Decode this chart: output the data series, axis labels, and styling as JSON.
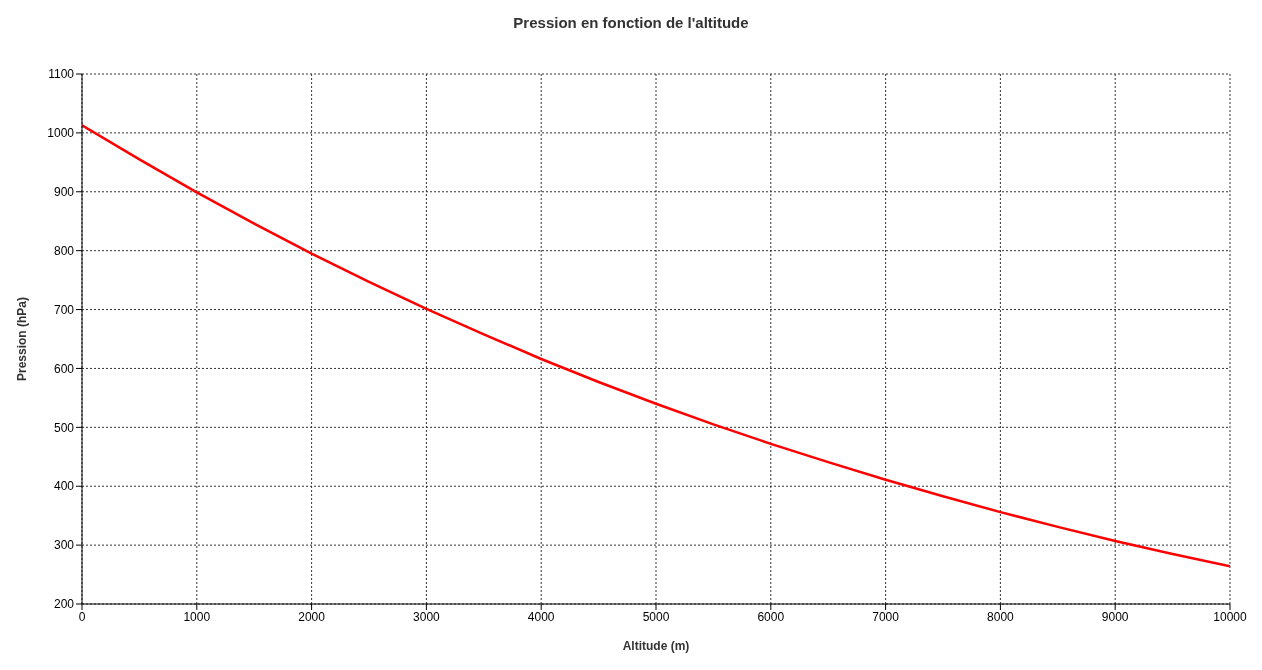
{
  "chart_data": {
    "type": "line",
    "title": "Pression en fonction de l'altitude",
    "xlabel": "Altitude (m)",
    "ylabel": "Pression (hPa)",
    "x": [
      0,
      500,
      1000,
      1500,
      2000,
      2500,
      3000,
      3500,
      4000,
      4500,
      5000,
      5500,
      6000,
      6500,
      7000,
      7500,
      8000,
      8500,
      9000,
      9500,
      10000
    ],
    "series": [
      {
        "color": "#ff0000",
        "values": [
          1013,
          955,
          899,
          846,
          795,
          747,
          701,
          658,
          616,
          577,
          540,
          505,
          472,
          441,
          411,
          383,
          356,
          331,
          307,
          285,
          264
        ]
      }
    ],
    "xlim": [
      0,
      10000
    ],
    "xticks": [
      0,
      1000,
      2000,
      3000,
      4000,
      5000,
      6000,
      7000,
      8000,
      9000,
      10000
    ],
    "ylim": [
      200,
      1100
    ],
    "yticks": [
      200,
      300,
      400,
      500,
      600,
      700,
      800,
      900,
      1000,
      1100
    ],
    "grid": true,
    "marker": "none",
    "line_style": "solid"
  }
}
